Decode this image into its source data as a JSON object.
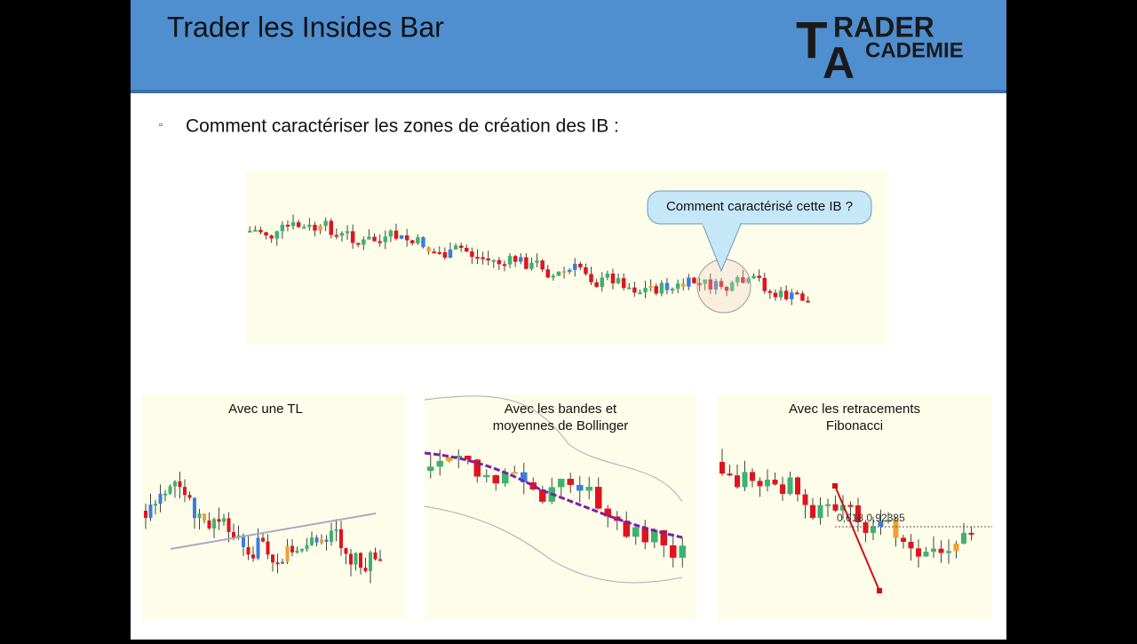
{
  "header": {
    "title": "Trader les Insides Bar",
    "logo": {
      "t": "T",
      "rader": "RADER",
      "a": "A",
      "cademie": "CADEMIE"
    }
  },
  "bullet": {
    "marker": "▫",
    "text": "Comment caractériser les zones de création des IB :"
  },
  "main_chart": {
    "callout": "Comment caractérisé cette IB ?"
  },
  "panels": [
    {
      "title": [
        "Avec une TL"
      ]
    },
    {
      "title": [
        "Avec les bandes et",
        "moyennes de Bollinger"
      ]
    },
    {
      "title": [
        "Avec les retracements",
        "Fibonacci"
      ],
      "level_label": "0,618 0,92385"
    }
  ]
}
